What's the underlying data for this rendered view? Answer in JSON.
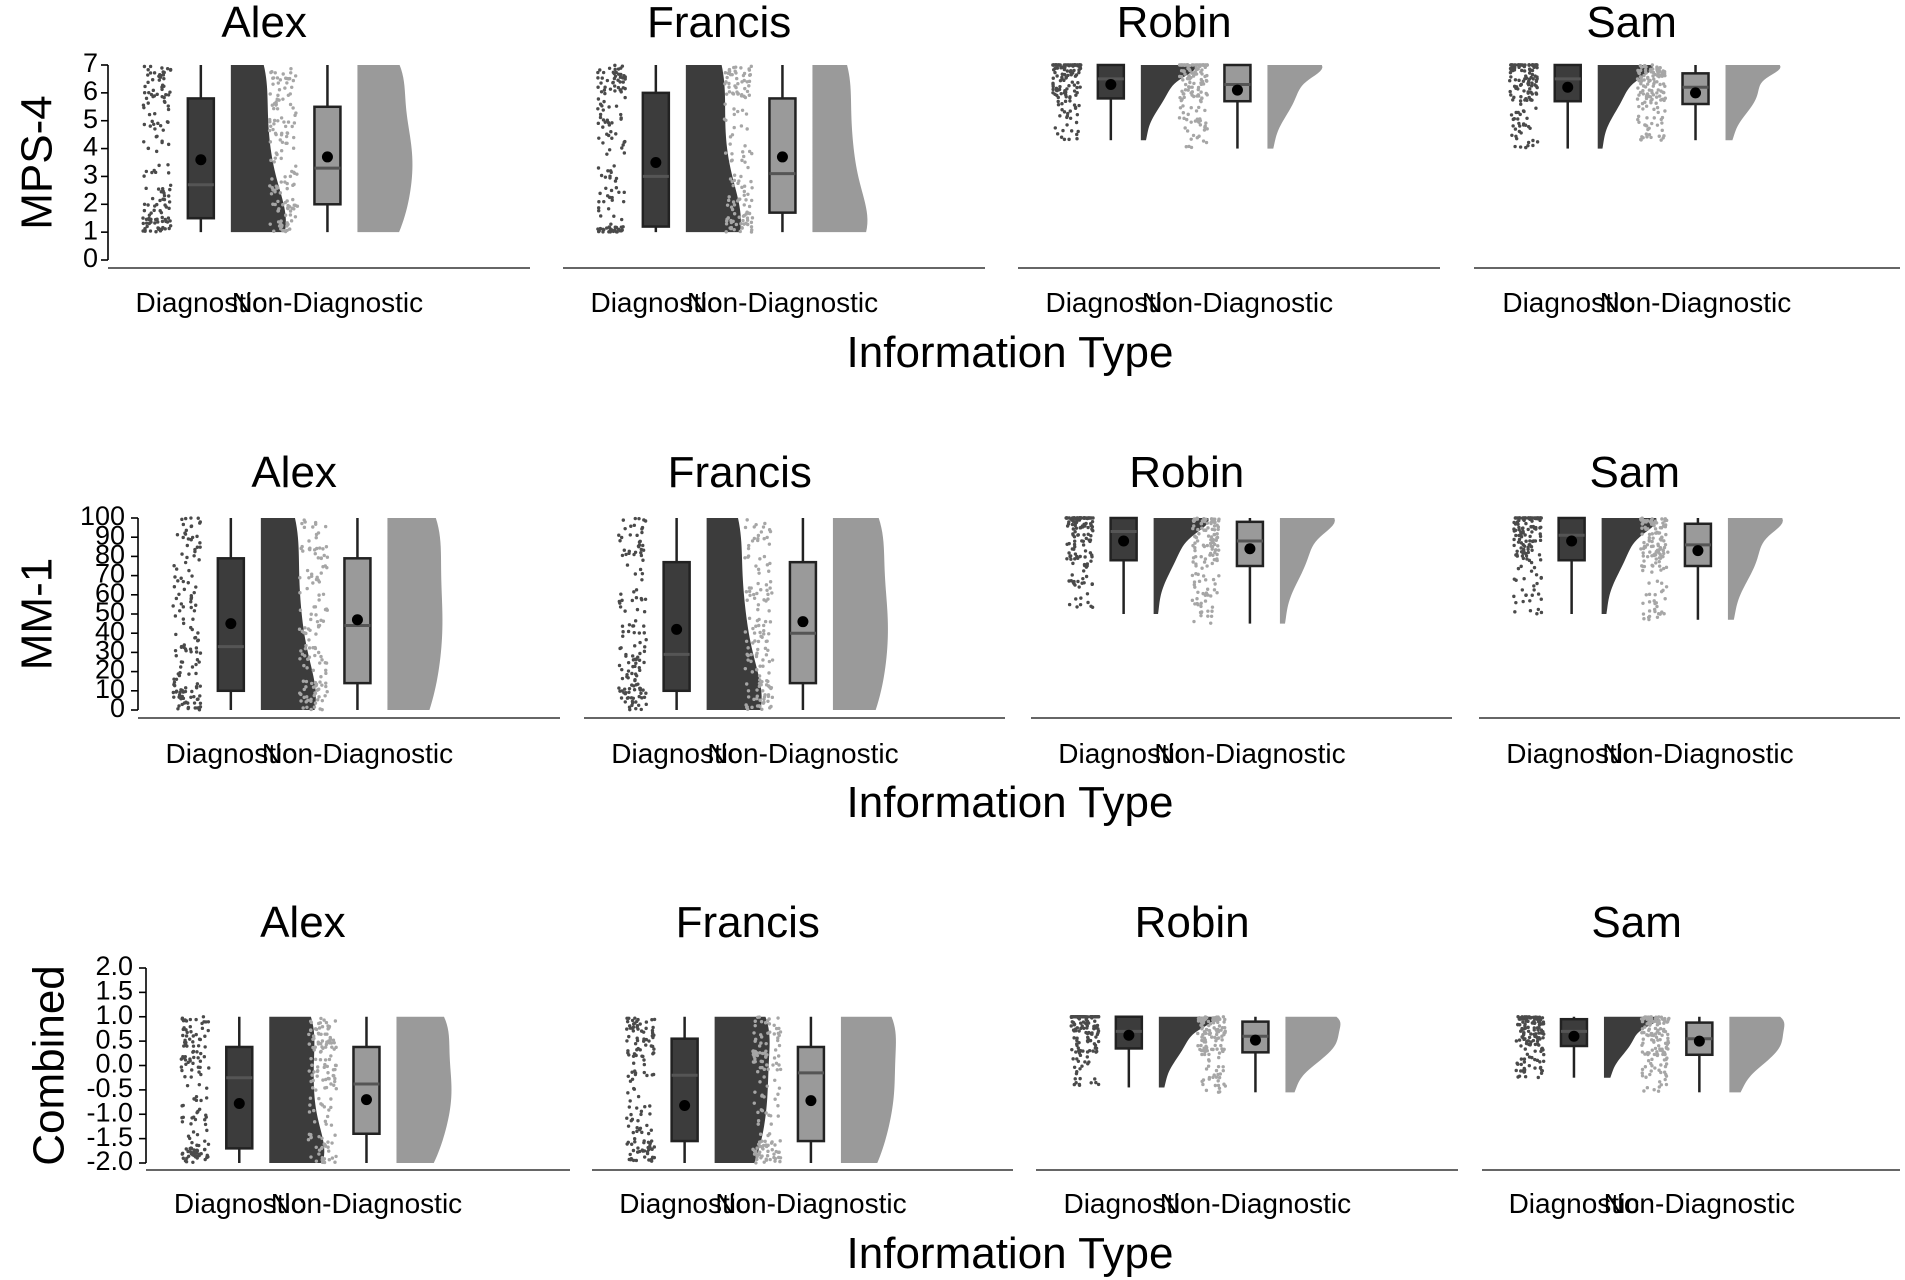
{
  "chart_data": [
    {
      "type": "raincloud",
      "ylabel": "MPS-4",
      "xlabel": "Information Type",
      "ylim": [
        0,
        7
      ],
      "yticks": [
        "0",
        "1",
        "2",
        "3",
        "4",
        "5",
        "6",
        "7"
      ],
      "categories": [
        "Diagnostic",
        "Non-Diagnostic"
      ],
      "facets": [
        {
          "title": "Alex",
          "groups": [
            {
              "category": "Diagnostic",
              "q1": 1.5,
              "median": 2.7,
              "q3": 5.8,
              "min": 1.0,
              "max": 7.0,
              "mean": 3.6
            },
            {
              "category": "Non-Diagnostic",
              "q1": 2.0,
              "median": 3.3,
              "q3": 5.5,
              "min": 1.0,
              "max": 7.0,
              "mean": 3.7
            }
          ]
        },
        {
          "title": "Francis",
          "groups": [
            {
              "category": "Diagnostic",
              "q1": 1.2,
              "median": 3.0,
              "q3": 6.0,
              "min": 1.0,
              "max": 7.0,
              "mean": 3.5
            },
            {
              "category": "Non-Diagnostic",
              "q1": 1.7,
              "median": 3.1,
              "q3": 5.8,
              "min": 1.0,
              "max": 7.0,
              "mean": 3.7
            }
          ]
        },
        {
          "title": "Robin",
          "groups": [
            {
              "category": "Diagnostic",
              "q1": 5.8,
              "median": 6.5,
              "q3": 7.0,
              "min": 4.3,
              "max": 7.0,
              "mean": 6.3
            },
            {
              "category": "Non-Diagnostic",
              "q1": 5.7,
              "median": 6.3,
              "q3": 7.0,
              "min": 4.0,
              "max": 7.0,
              "mean": 6.1
            }
          ]
        },
        {
          "title": "Sam",
          "groups": [
            {
              "category": "Diagnostic",
              "q1": 5.7,
              "median": 6.5,
              "q3": 7.0,
              "min": 4.0,
              "max": 7.0,
              "mean": 6.2
            },
            {
              "category": "Non-Diagnostic",
              "q1": 5.6,
              "median": 6.2,
              "q3": 6.7,
              "min": 4.3,
              "max": 7.0,
              "mean": 6.0
            }
          ]
        }
      ]
    },
    {
      "type": "raincloud",
      "ylabel": "MM-1",
      "xlabel": "Information Type",
      "ylim": [
        0,
        100
      ],
      "yticks": [
        "0",
        "10",
        "20",
        "30",
        "40",
        "50",
        "60",
        "70",
        "80",
        "90",
        "100"
      ],
      "categories": [
        "Diagnostic",
        "Non-Diagnostic"
      ],
      "facets": [
        {
          "title": "Alex",
          "groups": [
            {
              "category": "Diagnostic",
              "q1": 10,
              "median": 33,
              "q3": 79,
              "min": 0,
              "max": 100,
              "mean": 45
            },
            {
              "category": "Non-Diagnostic",
              "q1": 14,
              "median": 44,
              "q3": 79,
              "min": 0,
              "max": 100,
              "mean": 47
            }
          ]
        },
        {
          "title": "Francis",
          "groups": [
            {
              "category": "Diagnostic",
              "q1": 10,
              "median": 29,
              "q3": 77,
              "min": 0,
              "max": 100,
              "mean": 42
            },
            {
              "category": "Non-Diagnostic",
              "q1": 14,
              "median": 40,
              "q3": 77,
              "min": 0,
              "max": 100,
              "mean": 46
            }
          ]
        },
        {
          "title": "Robin",
          "groups": [
            {
              "category": "Diagnostic",
              "q1": 78,
              "median": 93,
              "q3": 100,
              "min": 50,
              "max": 100,
              "mean": 88
            },
            {
              "category": "Non-Diagnostic",
              "q1": 75,
              "median": 88,
              "q3": 98,
              "min": 45,
              "max": 100,
              "mean": 84
            }
          ]
        },
        {
          "title": "Sam",
          "groups": [
            {
              "category": "Diagnostic",
              "q1": 78,
              "median": 91,
              "q3": 100,
              "min": 50,
              "max": 100,
              "mean": 88
            },
            {
              "category": "Non-Diagnostic",
              "q1": 75,
              "median": 86,
              "q3": 97,
              "min": 47,
              "max": 100,
              "mean": 83
            }
          ]
        }
      ]
    },
    {
      "type": "raincloud",
      "ylabel": "Combined",
      "xlabel": "Information Type",
      "ylim": [
        -2.0,
        2.0
      ],
      "yticks": [
        "-2.0",
        "-1.5",
        "-1.0",
        "-0.5",
        "0.0",
        "0.5",
        "1.0",
        "1.5",
        "2.0"
      ],
      "categories": [
        "Diagnostic",
        "Non-Diagnostic"
      ],
      "facets": [
        {
          "title": "Alex",
          "groups": [
            {
              "category": "Diagnostic",
              "q1": -1.7,
              "median": -0.25,
              "q3": 0.38,
              "min": -2.0,
              "max": 1.0,
              "mean": -0.78
            },
            {
              "category": "Non-Diagnostic",
              "q1": -1.4,
              "median": -0.38,
              "q3": 0.38,
              "min": -2.0,
              "max": 1.0,
              "mean": -0.7
            }
          ]
        },
        {
          "title": "Francis",
          "groups": [
            {
              "category": "Diagnostic",
              "q1": -1.55,
              "median": -0.2,
              "q3": 0.55,
              "min": -2.0,
              "max": 1.0,
              "mean": -0.82
            },
            {
              "category": "Non-Diagnostic",
              "q1": -1.55,
              "median": -0.15,
              "q3": 0.38,
              "min": -2.0,
              "max": 1.0,
              "mean": -0.72
            }
          ]
        },
        {
          "title": "Robin",
          "groups": [
            {
              "category": "Diagnostic",
              "q1": 0.35,
              "median": 0.7,
              "q3": 1.0,
              "min": -0.45,
              "max": 1.0,
              "mean": 0.62
            },
            {
              "category": "Non-Diagnostic",
              "q1": 0.27,
              "median": 0.6,
              "q3": 0.9,
              "min": -0.55,
              "max": 1.0,
              "mean": 0.52
            }
          ]
        },
        {
          "title": "Sam",
          "groups": [
            {
              "category": "Diagnostic",
              "q1": 0.4,
              "median": 0.7,
              "q3": 0.95,
              "min": -0.25,
              "max": 1.0,
              "mean": 0.6
            },
            {
              "category": "Non-Diagnostic",
              "q1": 0.22,
              "median": 0.55,
              "q3": 0.88,
              "min": -0.55,
              "max": 1.0,
              "mean": 0.5
            }
          ]
        }
      ]
    }
  ]
}
